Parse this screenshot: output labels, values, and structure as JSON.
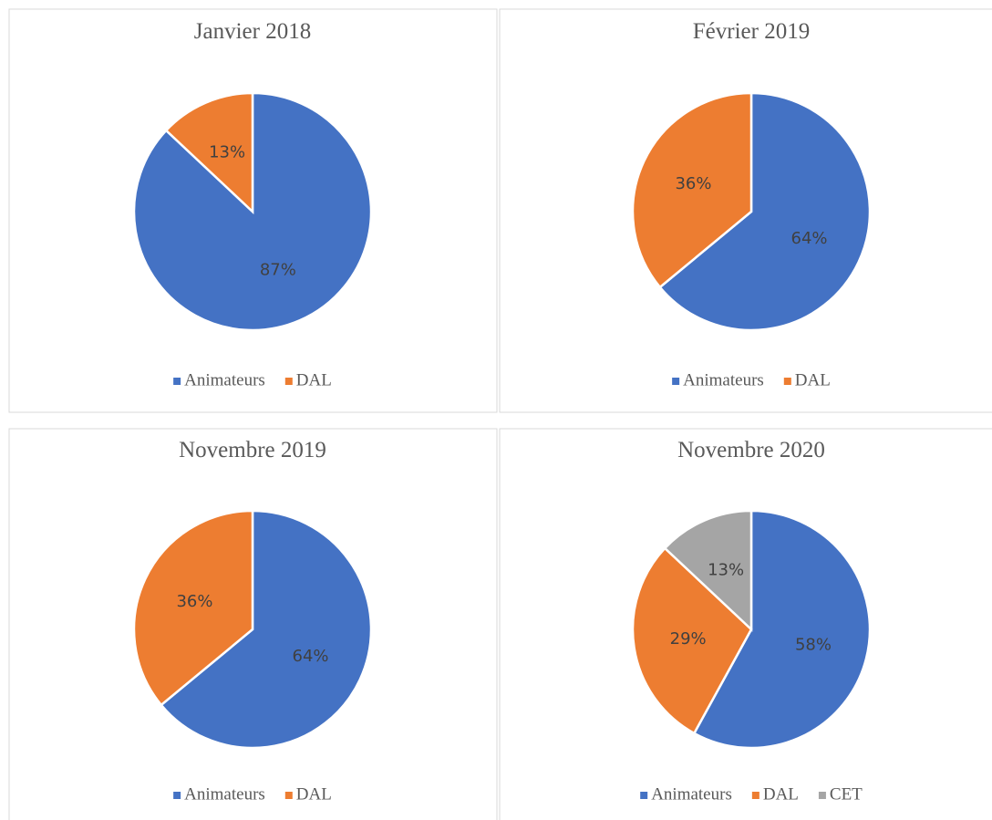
{
  "chart_data": [
    {
      "type": "pie",
      "title": "Janvier 2018",
      "categories": [
        "Animateurs",
        "DAL"
      ],
      "values": [
        87,
        13
      ],
      "value_labels": [
        "87%",
        "13%"
      ],
      "colors": [
        "#4472c4",
        "#ed7d31"
      ]
    },
    {
      "type": "pie",
      "title": "Février 2019",
      "categories": [
        "Animateurs",
        "DAL"
      ],
      "values": [
        64,
        36
      ],
      "value_labels": [
        "64%",
        "36%"
      ],
      "colors": [
        "#4472c4",
        "#ed7d31"
      ]
    },
    {
      "type": "pie",
      "title": "Novembre 2019",
      "categories": [
        "Animateurs",
        "DAL"
      ],
      "values": [
        64,
        36
      ],
      "value_labels": [
        "64%",
        "36%"
      ],
      "colors": [
        "#4472c4",
        "#ed7d31"
      ]
    },
    {
      "type": "pie",
      "title": "Novembre 2020",
      "categories": [
        "Animateurs",
        "DAL",
        "CET"
      ],
      "values": [
        58,
        29,
        13
      ],
      "value_labels": [
        "58%",
        "29%",
        "13%"
      ],
      "colors": [
        "#4472c4",
        "#ed7d31",
        "#a5a5a5"
      ]
    }
  ]
}
